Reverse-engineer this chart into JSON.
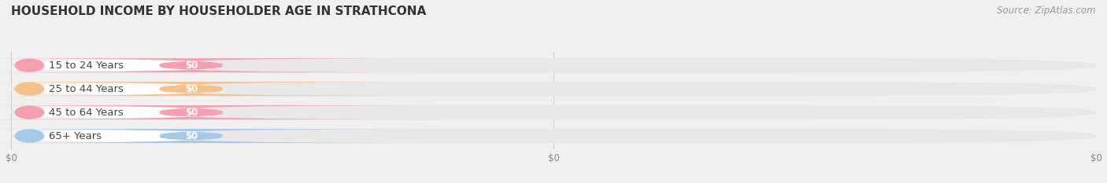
{
  "title": "HOUSEHOLD INCOME BY HOUSEHOLDER AGE IN STRATHCONA",
  "source": "Source: ZipAtlas.com",
  "categories": [
    "15 to 24 Years",
    "25 to 44 Years",
    "45 to 64 Years",
    "65+ Years"
  ],
  "values": [
    0,
    0,
    0,
    0
  ],
  "bar_colors": [
    "#f4a0b0",
    "#f5c08a",
    "#f4a0b0",
    "#a8c8e8"
  ],
  "background_color": "#f0f0f0",
  "bar_bg_color": "#e8e8e8",
  "bar_inner_color": "#ffffff",
  "label_color": "#444444",
  "value_label_color": "#ffffff",
  "title_color": "#333333",
  "title_fontsize": 11,
  "label_fontsize": 9.5,
  "value_fontsize": 8.5,
  "source_fontsize": 8.5,
  "xtick_labels": [
    "$0",
    "$0",
    "$0"
  ],
  "xtick_positions": [
    0.0,
    0.5,
    1.0
  ]
}
